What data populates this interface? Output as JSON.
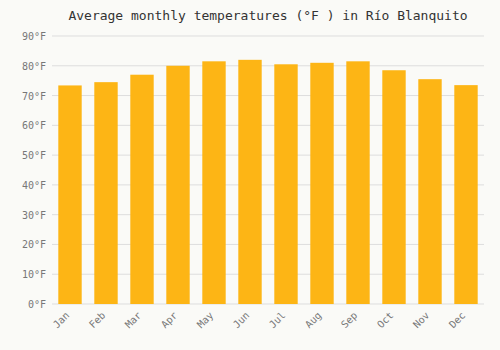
{
  "chart_data": {
    "type": "bar",
    "title": "Average monthly temperatures (°F ) in Río Blanquito",
    "categories": [
      "Jan",
      "Feb",
      "Mar",
      "Apr",
      "May",
      "Jun",
      "Jul",
      "Aug",
      "Sep",
      "Oct",
      "Nov",
      "Dec"
    ],
    "values": [
      73.4,
      74.5,
      77.0,
      80.0,
      81.5,
      82.0,
      80.5,
      81.0,
      81.5,
      78.5,
      75.5,
      73.5
    ],
    "color": "#FDB515",
    "ylim": [
      0,
      90
    ],
    "yticks": [
      {
        "value": 0,
        "label": "0°F"
      },
      {
        "value": 10,
        "label": "10°F"
      },
      {
        "value": 20,
        "label": "20°F"
      },
      {
        "value": 30,
        "label": "30°F"
      },
      {
        "value": 40,
        "label": "40°F"
      },
      {
        "value": 50,
        "label": "50°F"
      },
      {
        "value": 60,
        "label": "60°F"
      },
      {
        "value": 70,
        "label": "70°F"
      },
      {
        "value": 80,
        "label": "80°F"
      },
      {
        "value": 90,
        "label": "90°F"
      }
    ],
    "grid": true
  }
}
